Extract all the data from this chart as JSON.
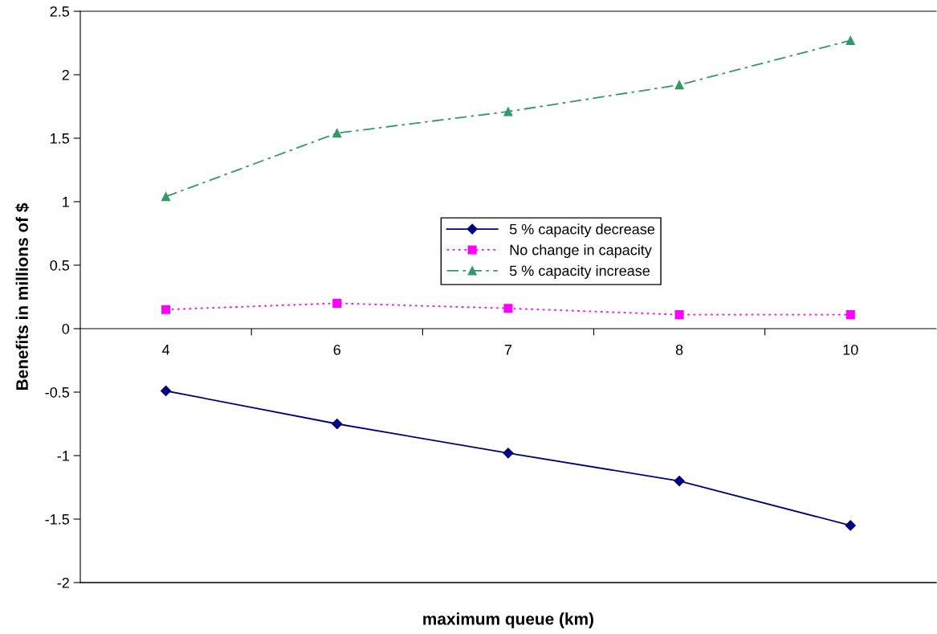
{
  "chart_data": {
    "type": "line",
    "xlabel": "maximum queue (km)",
    "ylabel": "Benefits in millions of $",
    "categories": [
      "4",
      "6",
      "7",
      "8",
      "10"
    ],
    "series": [
      {
        "name": "5 % capacity decrease",
        "color": "#000080",
        "values": [
          -0.49,
          -0.75,
          -0.98,
          -1.2,
          -1.55
        ],
        "marker": "diamond",
        "line_style": "solid"
      },
      {
        "name": "No change in capacity",
        "color": "#ff00ff",
        "values": [
          0.15,
          0.2,
          0.16,
          0.11,
          0.11
        ],
        "marker": "square",
        "line_style": "dotted"
      },
      {
        "name": "5 % capacity increase",
        "color": "#339966",
        "values": [
          1.04,
          1.54,
          1.71,
          1.92,
          2.27
        ],
        "marker": "triangle",
        "line_style": "dashdot"
      }
    ],
    "ylim": [
      -2,
      2.5
    ],
    "yticks": [
      -2,
      -1.5,
      -1,
      -0.5,
      0,
      0.5,
      1,
      1.5,
      2,
      2.5
    ],
    "grid": false,
    "legend": "center"
  }
}
